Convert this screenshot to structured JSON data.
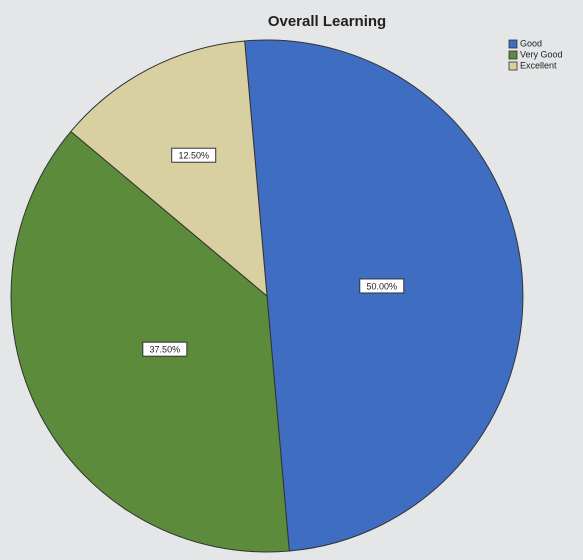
{
  "chart_data": {
    "type": "pie",
    "title": "Overall Learning",
    "categories": [
      "Good",
      "Very Good",
      "Excellent"
    ],
    "values": [
      50,
      37.5,
      12.5
    ],
    "value_labels": [
      "50.00%",
      "37.50%",
      "12.50%"
    ],
    "colors": [
      "#3f6dc2",
      "#5b8b3b",
      "#d9d0a2"
    ],
    "legend": "top-right"
  }
}
